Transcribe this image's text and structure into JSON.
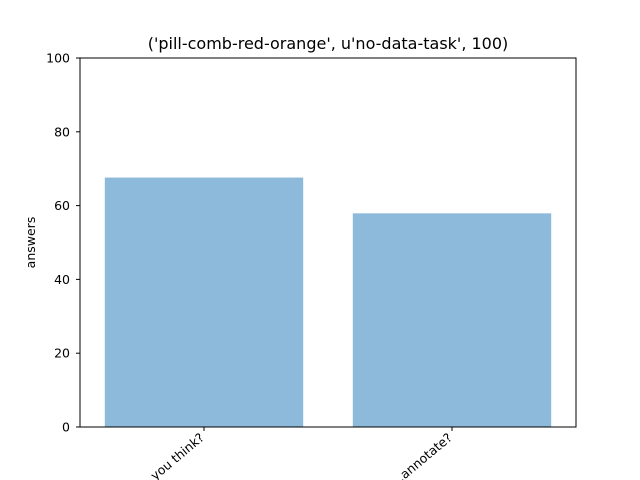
{
  "chart_data": {
    "type": "bar",
    "title": "('pill-comb-red-orange', u'no-data-task', 100)",
    "xlabel": "",
    "ylabel": "answers",
    "categories": [
      "...you think?",
      "...annotate?"
    ],
    "values": [
      67.6,
      57.9
    ],
    "ylim": [
      0,
      100
    ],
    "yticks": [
      0,
      20,
      40,
      60,
      80,
      100
    ],
    "bar_color": "#8db9da",
    "grid": false
  }
}
